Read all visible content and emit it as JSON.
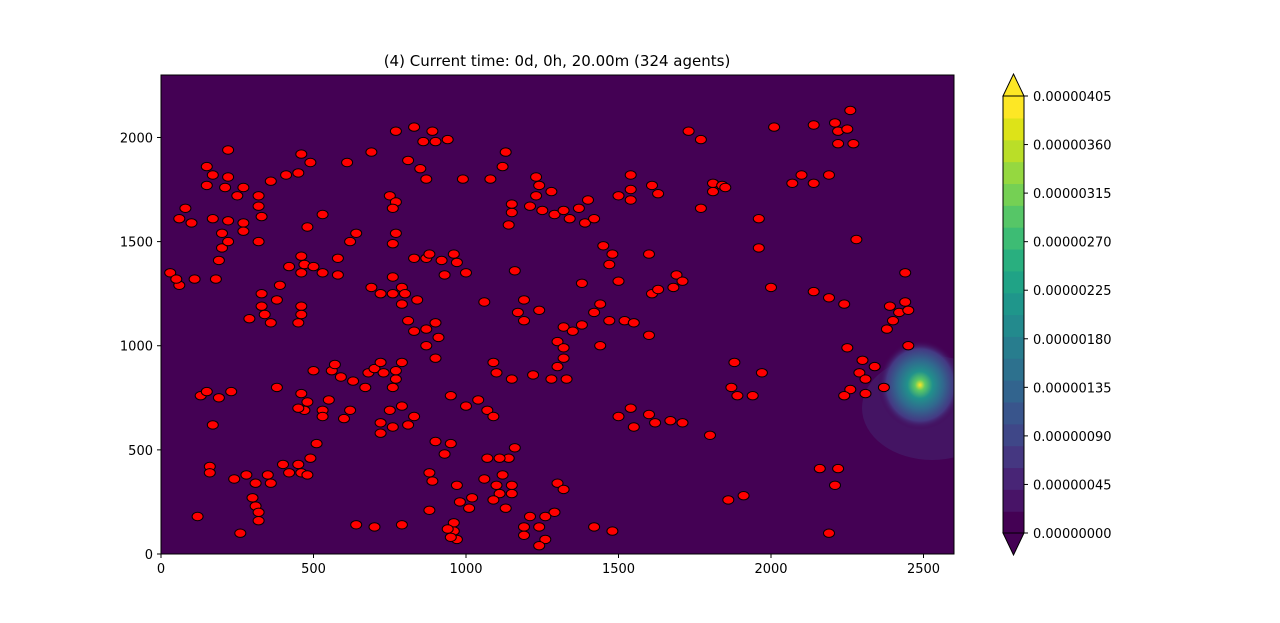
{
  "chart_data": {
    "type": "scatter",
    "title": "(4) Current time: 0d, 0h, 20.00m (324 agents)",
    "xlabel": "",
    "ylabel": "",
    "xlim": [
      0,
      2600
    ],
    "ylim": [
      0,
      2300
    ],
    "x_ticks": [
      "0",
      "500",
      "1000",
      "1500",
      "2000",
      "2500"
    ],
    "y_ticks": [
      "0",
      "500",
      "1000",
      "1500",
      "2000"
    ],
    "background_field": {
      "description_value_color": "#440154",
      "peak": {
        "x": 2470,
        "y": 875,
        "value": 4.05e-06
      },
      "colormap": "viridis"
    },
    "colorbar": {
      "min": 0.0,
      "max": 4.05e-06,
      "levels": 19,
      "tick_labels": [
        "0.00000000",
        "0.00000045",
        "0.00000090",
        "0.00000135",
        "0.00000180",
        "0.00000225",
        "0.00000270",
        "0.00000315",
        "0.00000360",
        "0.00000405"
      ],
      "tick_values": [
        0,
        4.5e-07,
        9e-07,
        1.35e-06,
        1.8e-06,
        2.25e-06,
        2.7e-06,
        3.15e-06,
        3.6e-06,
        4.05e-06
      ]
    },
    "marker": {
      "face_color": "#ff0000",
      "edge_color": "#000000"
    },
    "points": [
      [
        30,
        1350
      ],
      [
        60,
        1290
      ],
      [
        110,
        1320
      ],
      [
        180,
        1320
      ],
      [
        50,
        1320
      ],
      [
        100,
        1590
      ],
      [
        60,
        1610
      ],
      [
        80,
        1660
      ],
      [
        150,
        1860
      ],
      [
        150,
        1770
      ],
      [
        170,
        1820
      ],
      [
        210,
        1760
      ],
      [
        220,
        1940
      ],
      [
        250,
        1720
      ],
      [
        270,
        1760
      ],
      [
        320,
        1720
      ],
      [
        320,
        1670
      ],
      [
        330,
        1620
      ],
      [
        360,
        1790
      ],
      [
        410,
        1820
      ],
      [
        450,
        1830
      ],
      [
        460,
        1920
      ],
      [
        490,
        1880
      ],
      [
        530,
        1630
      ],
      [
        480,
        1570
      ],
      [
        220,
        1810
      ],
      [
        170,
        1610
      ],
      [
        200,
        1540
      ],
      [
        200,
        1470
      ],
      [
        190,
        1410
      ],
      [
        220,
        1600
      ],
      [
        220,
        1500
      ],
      [
        270,
        1590
      ],
      [
        270,
        1550
      ],
      [
        320,
        1500
      ],
      [
        420,
        1380
      ],
      [
        470,
        1390
      ],
      [
        460,
        1430
      ],
      [
        460,
        1350
      ],
      [
        500,
        1380
      ],
      [
        530,
        1350
      ],
      [
        580,
        1340
      ],
      [
        580,
        1420
      ],
      [
        620,
        1500
      ],
      [
        640,
        1540
      ],
      [
        610,
        1880
      ],
      [
        690,
        1930
      ],
      [
        770,
        2030
      ],
      [
        830,
        2050
      ],
      [
        860,
        1980
      ],
      [
        890,
        2030
      ],
      [
        900,
        1980
      ],
      [
        940,
        1990
      ],
      [
        810,
        1890
      ],
      [
        850,
        1850
      ],
      [
        870,
        1800
      ],
      [
        750,
        1720
      ],
      [
        770,
        1690
      ],
      [
        760,
        1660
      ],
      [
        770,
        1540
      ],
      [
        760,
        1490
      ],
      [
        830,
        1420
      ],
      [
        870,
        1420
      ],
      [
        880,
        1440
      ],
      [
        920,
        1410
      ],
      [
        930,
        1340
      ],
      [
        960,
        1440
      ],
      [
        970,
        1400
      ],
      [
        1000,
        1350
      ],
      [
        990,
        1800
      ],
      [
        1080,
        1800
      ],
      [
        1120,
        1860
      ],
      [
        1130,
        1930
      ],
      [
        1150,
        1640
      ],
      [
        1150,
        1680
      ],
      [
        1140,
        1580
      ],
      [
        1160,
        1360
      ],
      [
        1230,
        1810
      ],
      [
        1240,
        1770
      ],
      [
        1210,
        1670
      ],
      [
        1230,
        1720
      ],
      [
        1250,
        1650
      ],
      [
        1280,
        1740
      ],
      [
        1290,
        1630
      ],
      [
        1320,
        1650
      ],
      [
        1340,
        1610
      ],
      [
        1370,
        1660
      ],
      [
        1400,
        1700
      ],
      [
        1390,
        1590
      ],
      [
        1420,
        1610
      ],
      [
        1500,
        1720
      ],
      [
        1540,
        1750
      ],
      [
        1540,
        1820
      ],
      [
        1540,
        1700
      ],
      [
        1610,
        1770
      ],
      [
        1630,
        1730
      ],
      [
        1730,
        2030
      ],
      [
        1770,
        1990
      ],
      [
        1770,
        1660
      ],
      [
        1810,
        1780
      ],
      [
        1810,
        1740
      ],
      [
        1840,
        1770
      ],
      [
        1600,
        1440
      ],
      [
        1480,
        1440
      ],
      [
        1470,
        1390
      ],
      [
        1450,
        1480
      ],
      [
        1500,
        1310
      ],
      [
        1380,
        1300
      ],
      [
        1320,
        1090
      ],
      [
        1350,
        1070
      ],
      [
        1380,
        1100
      ],
      [
        1420,
        1160
      ],
      [
        1440,
        1200
      ],
      [
        1470,
        1120
      ],
      [
        1520,
        1120
      ],
      [
        1550,
        1110
      ],
      [
        1600,
        1050
      ],
      [
        1610,
        1250
      ],
      [
        1630,
        1270
      ],
      [
        1680,
        1280
      ],
      [
        1690,
        1340
      ],
      [
        1710,
        1310
      ],
      [
        1850,
        1760
      ],
      [
        2010,
        2050
      ],
      [
        2140,
        2060
      ],
      [
        2210,
        2070
      ],
      [
        2220,
        2030
      ],
      [
        2250,
        2040
      ],
      [
        2260,
        2130
      ],
      [
        2270,
        1970
      ],
      [
        2220,
        1970
      ],
      [
        2190,
        1820
      ],
      [
        2140,
        1780
      ],
      [
        2100,
        1820
      ],
      [
        2070,
        1780
      ],
      [
        1960,
        1610
      ],
      [
        1960,
        1470
      ],
      [
        2000,
        1280
      ],
      [
        2280,
        1510
      ],
      [
        2140,
        1260
      ],
      [
        2190,
        1230
      ],
      [
        2240,
        1200
      ],
      [
        2440,
        1350
      ],
      [
        2390,
        1190
      ],
      [
        2420,
        1160
      ],
      [
        2440,
        1210
      ],
      [
        2450,
        1170
      ],
      [
        2400,
        1120
      ],
      [
        2380,
        1080
      ],
      [
        2450,
        1000
      ],
      [
        2250,
        990
      ],
      [
        2300,
        930
      ],
      [
        2340,
        900
      ],
      [
        2290,
        870
      ],
      [
        2310,
        840
      ],
      [
        2260,
        790
      ],
      [
        2240,
        760
      ],
      [
        2370,
        800
      ],
      [
        2310,
        770
      ],
      [
        1970,
        870
      ],
      [
        1880,
        920
      ],
      [
        1870,
        800
      ],
      [
        1890,
        760
      ],
      [
        1940,
        760
      ],
      [
        1800,
        570
      ],
      [
        1910,
        280
      ],
      [
        1860,
        260
      ],
      [
        2160,
        410
      ],
      [
        2220,
        410
      ],
      [
        2210,
        330
      ],
      [
        2190,
        100
      ],
      [
        1420,
        130
      ],
      [
        1480,
        110
      ],
      [
        1300,
        340
      ],
      [
        1320,
        310
      ],
      [
        1290,
        200
      ],
      [
        1260,
        180
      ],
      [
        1240,
        130
      ],
      [
        1260,
        70
      ],
      [
        1240,
        40
      ],
      [
        1210,
        180
      ],
      [
        1190,
        130
      ],
      [
        1190,
        90
      ],
      [
        1150,
        330
      ],
      [
        1150,
        290
      ],
      [
        1120,
        380
      ],
      [
        1110,
        290
      ],
      [
        1100,
        330
      ],
      [
        1090,
        260
      ],
      [
        1130,
        220
      ],
      [
        1140,
        460
      ],
      [
        1110,
        460
      ],
      [
        1070,
        460
      ],
      [
        1060,
        360
      ],
      [
        1020,
        270
      ],
      [
        1010,
        220
      ],
      [
        980,
        250
      ],
      [
        970,
        330
      ],
      [
        960,
        150
      ],
      [
        960,
        110
      ],
      [
        940,
        120
      ],
      [
        970,
        70
      ],
      [
        950,
        80
      ],
      [
        880,
        210
      ],
      [
        880,
        390
      ],
      [
        890,
        350
      ],
      [
        900,
        540
      ],
      [
        930,
        480
      ],
      [
        950,
        530
      ],
      [
        1000,
        710
      ],
      [
        950,
        760
      ],
      [
        1040,
        740
      ],
      [
        1070,
        690
      ],
      [
        1090,
        660
      ],
      [
        1090,
        920
      ],
      [
        1100,
        870
      ],
      [
        1150,
        840
      ],
      [
        1160,
        510
      ],
      [
        1220,
        860
      ],
      [
        1280,
        840
      ],
      [
        1300,
        900
      ],
      [
        1320,
        940
      ],
      [
        1300,
        1020
      ],
      [
        1320,
        990
      ],
      [
        1330,
        840
      ],
      [
        1170,
        1160
      ],
      [
        1190,
        1120
      ],
      [
        1190,
        1220
      ],
      [
        1240,
        1170
      ],
      [
        1060,
        1210
      ],
      [
        1440,
        1000
      ],
      [
        1500,
        660
      ],
      [
        1540,
        700
      ],
      [
        1550,
        610
      ],
      [
        1600,
        670
      ],
      [
        1620,
        630
      ],
      [
        1670,
        640
      ],
      [
        1710,
        630
      ],
      [
        130,
        760
      ],
      [
        150,
        780
      ],
      [
        170,
        620
      ],
      [
        190,
        750
      ],
      [
        230,
        780
      ],
      [
        160,
        420
      ],
      [
        160,
        390
      ],
      [
        240,
        360
      ],
      [
        280,
        380
      ],
      [
        300,
        270
      ],
      [
        310,
        340
      ],
      [
        310,
        230
      ],
      [
        320,
        200
      ],
      [
        320,
        160
      ],
      [
        350,
        380
      ],
      [
        360,
        340
      ],
      [
        400,
        430
      ],
      [
        420,
        390
      ],
      [
        450,
        430
      ],
      [
        460,
        390
      ],
      [
        480,
        380
      ],
      [
        490,
        460
      ],
      [
        510,
        530
      ],
      [
        550,
        740
      ],
      [
        530,
        690
      ],
      [
        530,
        660
      ],
      [
        480,
        730
      ],
      [
        470,
        690
      ],
      [
        450,
        700
      ],
      [
        460,
        770
      ],
      [
        500,
        880
      ],
      [
        560,
        880
      ],
      [
        570,
        910
      ],
      [
        590,
        850
      ],
      [
        620,
        690
      ],
      [
        600,
        650
      ],
      [
        630,
        830
      ],
      [
        670,
        800
      ],
      [
        680,
        870
      ],
      [
        700,
        890
      ],
      [
        720,
        920
      ],
      [
        730,
        870
      ],
      [
        760,
        800
      ],
      [
        770,
        840
      ],
      [
        770,
        880
      ],
      [
        790,
        920
      ],
      [
        750,
        690
      ],
      [
        790,
        710
      ],
      [
        810,
        620
      ],
      [
        830,
        660
      ],
      [
        760,
        610
      ],
      [
        720,
        630
      ],
      [
        720,
        580
      ],
      [
        380,
        800
      ],
      [
        330,
        1250
      ],
      [
        330,
        1190
      ],
      [
        340,
        1150
      ],
      [
        360,
        1110
      ],
      [
        290,
        1130
      ],
      [
        380,
        1220
      ],
      [
        390,
        1290
      ],
      [
        460,
        1190
      ],
      [
        460,
        1150
      ],
      [
        450,
        1110
      ],
      [
        690,
        1280
      ],
      [
        720,
        1250
      ],
      [
        760,
        1330
      ],
      [
        760,
        1250
      ],
      [
        790,
        1280
      ],
      [
        800,
        1250
      ],
      [
        790,
        1200
      ],
      [
        840,
        1220
      ],
      [
        810,
        1120
      ],
      [
        830,
        1070
      ],
      [
        870,
        1080
      ],
      [
        900,
        1110
      ],
      [
        910,
        1040
      ],
      [
        870,
        1000
      ],
      [
        900,
        940
      ],
      [
        790,
        140
      ],
      [
        700,
        130
      ],
      [
        640,
        140
      ],
      [
        260,
        100
      ],
      [
        120,
        180
      ]
    ]
  }
}
